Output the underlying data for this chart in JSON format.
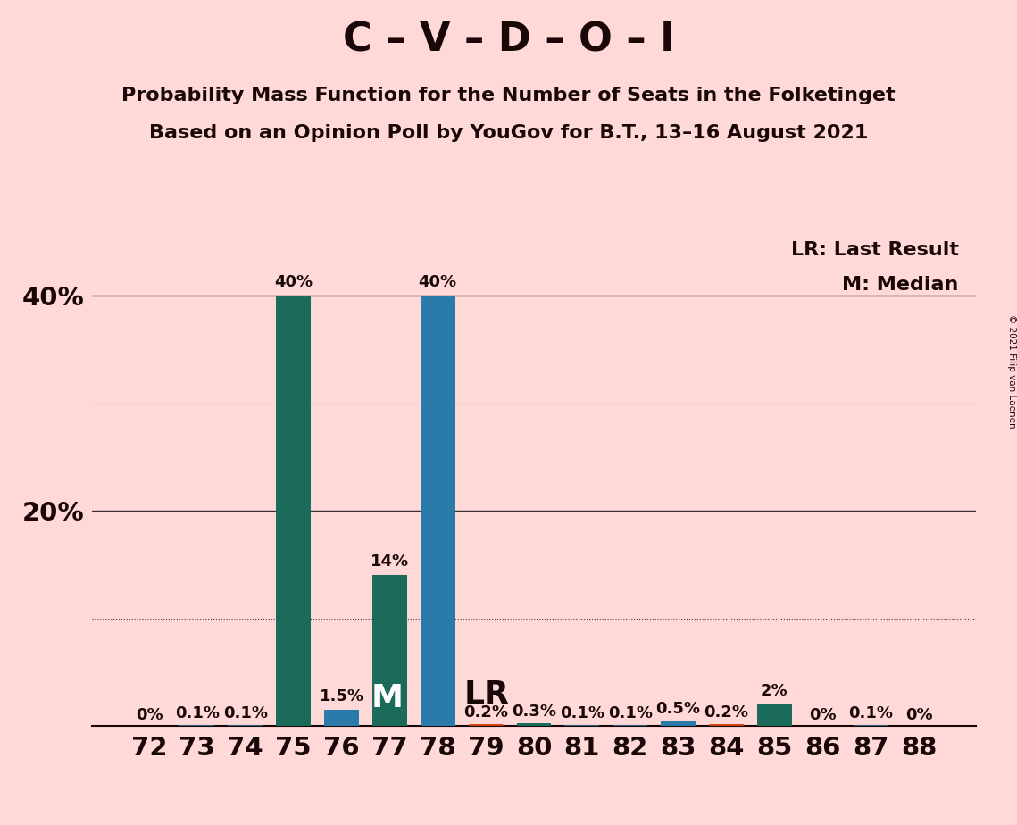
{
  "title": "C – V – D – O – I",
  "subtitle1": "Probability Mass Function for the Number of Seats in the Folketinget",
  "subtitle2": "Based on an Opinion Poll by YouGov for B.T., 13–16 August 2021",
  "copyright": "© 2021 Filip van Laenen",
  "background_color": "#FFD8D8",
  "seats": [
    72,
    73,
    74,
    75,
    76,
    77,
    78,
    79,
    80,
    81,
    82,
    83,
    84,
    85,
    86,
    87,
    88
  ],
  "values": [
    0.0,
    0.1,
    0.1,
    40.0,
    1.5,
    14.0,
    40.0,
    0.2,
    0.3,
    0.1,
    0.1,
    0.5,
    0.2,
    2.0,
    0.0,
    0.1,
    0.0
  ],
  "labels": [
    "0%",
    "0.1%",
    "0.1%",
    "40%",
    "1.5%",
    "14%",
    "40%",
    "0.2%",
    "0.3%",
    "0.1%",
    "0.1%",
    "0.5%",
    "0.2%",
    "2%",
    "0%",
    "0.1%",
    "0%"
  ],
  "bar_colors": [
    "#2a6080",
    "#2a6080",
    "#2a6080",
    "#1b6b5a",
    "#2a7aaa",
    "#1b6b5a",
    "#2a7aaa",
    "#d04010",
    "#1b6b5a",
    "#2a6080",
    "#2a6080",
    "#2a7aaa",
    "#d04010",
    "#1b6b5a",
    "#2a6080",
    "#2a6080",
    "#2a6080"
  ],
  "median_seat": 77,
  "lr_seat": 78,
  "ylim_max": 46,
  "legend_lr": "LR: Last Result",
  "legend_m": "M: Median",
  "text_color": "#1a0808",
  "title_fontsize": 32,
  "subtitle_fontsize": 16,
  "label_fontsize": 13,
  "tick_fontsize": 21,
  "bar_width": 0.72
}
